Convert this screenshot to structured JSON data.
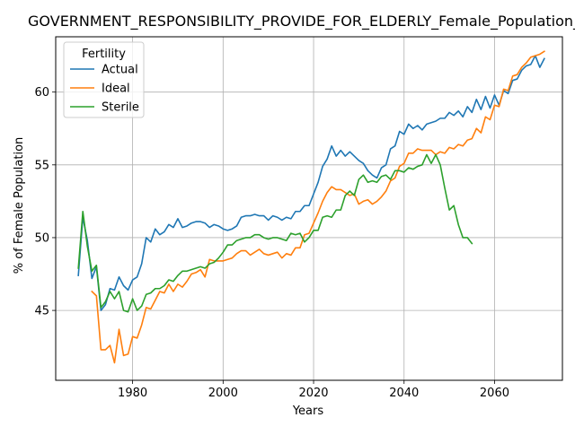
{
  "chart_data": {
    "type": "line",
    "title": "GOVERNMENT_RESPONSIBILITY_PROVIDE_FOR_ELDERLY_Female_Population_Sc",
    "xlabel": "Years",
    "ylabel": "% of Female Population",
    "xlim": [
      1963,
      2075
    ],
    "ylim": [
      40.2,
      63.8
    ],
    "xticks": [
      1980,
      2000,
      2020,
      2040,
      2060
    ],
    "yticks": [
      45,
      50,
      55,
      60
    ],
    "grid": true,
    "legend": {
      "title": "Fertility",
      "position": "top-left"
    },
    "series": [
      {
        "name": "Actual",
        "color": "#1f77b4",
        "start_year": 1968,
        "values": [
          47.4,
          51.4,
          49.8,
          47.2,
          48.0,
          45.0,
          45.4,
          46.5,
          46.4,
          47.3,
          46.7,
          46.4,
          47.1,
          47.3,
          48.2,
          50.0,
          49.7,
          50.6,
          50.2,
          50.4,
          50.9,
          50.7,
          51.3,
          50.7,
          50.8,
          51.0,
          51.1,
          51.1,
          51.0,
          50.7,
          50.9,
          50.8,
          50.6,
          50.5,
          50.6,
          50.8,
          51.4,
          51.5,
          51.5,
          51.6,
          51.5,
          51.5,
          51.2,
          51.5,
          51.4,
          51.2,
          51.4,
          51.3,
          51.8,
          51.8,
          52.2,
          52.2,
          53.0,
          53.8,
          54.9,
          55.4,
          56.3,
          55.6,
          56.0,
          55.6,
          55.9,
          55.6,
          55.3,
          55.1,
          54.6,
          54.3,
          54.1,
          54.8,
          55.0,
          56.1,
          56.3,
          57.3,
          57.1,
          57.8,
          57.5,
          57.7,
          57.4,
          57.8,
          57.9,
          58.0,
          58.2,
          58.2,
          58.6,
          58.4,
          58.7,
          58.3,
          59.0,
          58.6,
          59.5,
          58.8,
          59.7,
          58.9,
          59.8,
          59.1,
          60.1,
          59.9,
          60.8,
          60.9,
          61.5,
          61.8,
          61.9,
          62.5,
          61.7,
          62.3
        ]
      },
      {
        "name": "Ideal",
        "color": "#ff7f0e",
        "start_year": 1971,
        "values": [
          46.3,
          46.0,
          42.3,
          42.3,
          42.6,
          41.4,
          43.7,
          41.9,
          42.0,
          43.2,
          43.1,
          44.0,
          45.2,
          45.1,
          45.7,
          46.3,
          46.2,
          46.8,
          46.3,
          46.8,
          46.6,
          47.0,
          47.5,
          47.6,
          47.8,
          47.3,
          48.5,
          48.4,
          48.4,
          48.4,
          48.5,
          48.6,
          48.9,
          49.1,
          49.1,
          48.8,
          49.0,
          49.2,
          48.9,
          48.8,
          48.9,
          49.0,
          48.6,
          48.9,
          48.8,
          49.3,
          49.3,
          50.2,
          50.3,
          51.0,
          51.7,
          52.5,
          53.1,
          53.5,
          53.3,
          53.3,
          53.1,
          52.9,
          53.0,
          52.3,
          52.5,
          52.6,
          52.3,
          52.5,
          52.8,
          53.2,
          53.9,
          54.1,
          54.9,
          55.1,
          55.8,
          55.8,
          56.1,
          56.0,
          56.0,
          56.0,
          55.7,
          55.9,
          55.8,
          56.2,
          56.1,
          56.4,
          56.3,
          56.7,
          56.8,
          57.5,
          57.2,
          58.3,
          58.1,
          59.1,
          59.0,
          60.2,
          60.1,
          61.1,
          61.2,
          61.7,
          62.0,
          62.4,
          62.5,
          62.6,
          62.8
        ]
      },
      {
        "name": "Sterile",
        "color": "#2ca02c",
        "start_year": 1968,
        "values": [
          47.9,
          51.8,
          49.4,
          47.7,
          48.1,
          45.2,
          45.6,
          46.3,
          45.8,
          46.3,
          45.0,
          44.9,
          45.8,
          45.0,
          45.3,
          46.1,
          46.2,
          46.5,
          46.5,
          46.7,
          47.1,
          47.0,
          47.4,
          47.7,
          47.7,
          47.8,
          47.9,
          48.0,
          47.9,
          48.2,
          48.3,
          48.6,
          49.0,
          49.5,
          49.5,
          49.8,
          49.9,
          50.0,
          50.0,
          50.2,
          50.2,
          50.0,
          49.9,
          50.0,
          50.0,
          49.9,
          49.8,
          50.3,
          50.2,
          50.3,
          49.7,
          50.0,
          50.5,
          50.5,
          51.4,
          51.5,
          51.4,
          51.9,
          51.9,
          52.9,
          53.2,
          52.9,
          54.0,
          54.3,
          53.8,
          53.9,
          53.8,
          54.2,
          54.3,
          54.0,
          54.6,
          54.6,
          54.5,
          54.8,
          54.7,
          54.9,
          55.0,
          55.7,
          55.1,
          55.7,
          55.0,
          53.4,
          51.9,
          52.2,
          50.9,
          50.0,
          50.0,
          49.6
        ]
      }
    ]
  }
}
